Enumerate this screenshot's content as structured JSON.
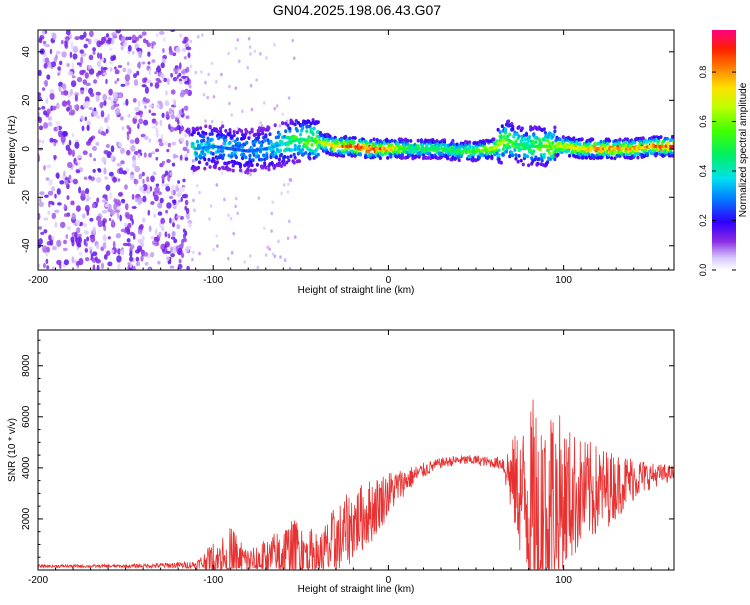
{
  "title": "GN04.2025.198.06.43.G07",
  "colors": {
    "snr_line": "#e83232",
    "axis": "#000000",
    "background": "#ffffff"
  },
  "chart_data": [
    {
      "type": "heatmap",
      "title": "GN04.2025.198.06.43.G07",
      "xlabel": "Height of straight line (km)",
      "ylabel": "Frequency (Hz)",
      "xlim": [
        -200,
        163
      ],
      "ylim": [
        -50,
        49
      ],
      "x_ticks": [
        -200,
        -100,
        0,
        100
      ],
      "x_tick_labels": [
        "-200",
        "-100",
        "0",
        "100"
      ],
      "y_ticks": [
        -40,
        -20,
        0,
        20,
        40
      ],
      "y_tick_labels": [
        "-40",
        "-20",
        "0",
        "20",
        "40"
      ],
      "colorbar": {
        "label": "Normalized spectral amplitude",
        "range": [
          0,
          0.97
        ],
        "ticks": [
          0.0,
          0.2,
          0.4,
          0.6,
          0.8
        ],
        "tick_labels": [
          "0.0",
          "0.2",
          "0.4",
          "0.6",
          "0.8"
        ]
      },
      "ridge": {
        "x": [
          -110,
          -100,
          -90,
          -80,
          -70,
          -60,
          -50,
          -40,
          -30,
          -20,
          -10,
          0,
          10,
          20,
          30,
          40,
          50,
          60,
          68,
          72,
          80,
          90,
          100,
          110,
          120,
          130,
          140,
          150,
          163
        ],
        "y": [
          0,
          1,
          0,
          -1,
          0,
          2,
          4,
          3,
          1,
          1,
          0,
          0,
          0,
          0,
          0,
          -1,
          -1,
          0,
          4,
          2,
          1,
          1,
          1,
          0,
          0,
          0,
          0,
          1,
          1
        ],
        "peak_amplitude": [
          0.35,
          0.3,
          0.3,
          0.25,
          0.3,
          0.4,
          0.5,
          0.6,
          0.8,
          0.85,
          0.9,
          0.8,
          0.5,
          0.5,
          0.5,
          0.5,
          0.55,
          0.7,
          0.6,
          0.5,
          0.45,
          0.6,
          0.7,
          0.75,
          0.8,
          0.8,
          0.8,
          0.85,
          0.9
        ]
      },
      "noise_region_x": [
        -200,
        -113
      ]
    },
    {
      "type": "line",
      "xlabel": "Height of straight line (km)",
      "ylabel": "SNR (10 * v/v)",
      "xlim": [
        -200,
        163
      ],
      "ylim": [
        0,
        9400
      ],
      "x_ticks": [
        -200,
        -100,
        0,
        100
      ],
      "x_tick_labels": [
        "-200",
        "-100",
        "0",
        "100"
      ],
      "y_ticks": [
        2000,
        4000,
        6000,
        8000
      ],
      "y_tick_labels": [
        "2000",
        "4000",
        "6000",
        "8000"
      ],
      "envelope": {
        "x": [
          -200,
          -150,
          -110,
          -100,
          -90,
          -80,
          -70,
          -60,
          -50,
          -40,
          -30,
          -20,
          -10,
          0,
          10,
          20,
          30,
          40,
          50,
          60,
          65,
          70,
          80,
          85,
          90,
          95,
          100,
          110,
          120,
          130,
          140,
          150,
          163
        ],
        "base": [
          150,
          150,
          200,
          400,
          500,
          300,
          400,
          600,
          700,
          500,
          1000,
          1800,
          2300,
          3000,
          3500,
          3900,
          4200,
          4300,
          4300,
          4200,
          4200,
          3600,
          2500,
          1500,
          2000,
          2500,
          2800,
          3000,
          3100,
          3300,
          3600,
          3700,
          3800
        ],
        "amp": [
          60,
          60,
          150,
          700,
          1200,
          600,
          800,
          1200,
          1400,
          900,
          1600,
          1400,
          1300,
          900,
          500,
          300,
          200,
          200,
          200,
          200,
          300,
          1500,
          3500,
          6000,
          5500,
          4000,
          3000,
          2200,
          1800,
          1300,
          900,
          500,
          300
        ]
      }
    }
  ]
}
